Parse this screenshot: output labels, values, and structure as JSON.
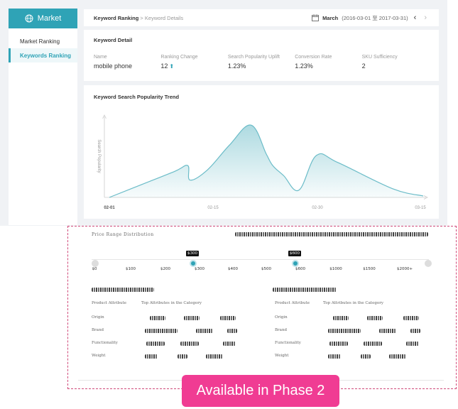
{
  "sidebar": {
    "brand": "Market",
    "items": [
      {
        "label": "Market Ranking",
        "active": false
      },
      {
        "label": "Keywords Ranking",
        "active": true
      }
    ]
  },
  "header": {
    "breadcrumb_main": "Keyword Ranking",
    "breadcrumb_sep": " > ",
    "breadcrumb_sub": "Keyword Details",
    "date_month": "March",
    "date_range": "(2016-03-01 至 2017-03-31)"
  },
  "detail": {
    "title": "Keyword Detail",
    "metrics": [
      {
        "label": "Name",
        "value": "mobile phone"
      },
      {
        "label": "Ranking Change",
        "value": "12"
      },
      {
        "label": "Search Popularity Uplift",
        "value": "1.23%"
      },
      {
        "label": "Conversion Rate",
        "value": "1.23%"
      },
      {
        "label": "SKU Sufficiency",
        "value": "2"
      }
    ]
  },
  "chart_data": {
    "type": "area",
    "title": "Keyword Search Popularity Trend",
    "ylabel": "Search Popularity",
    "xlabel": "",
    "x_ticks": [
      "02-01",
      "02-15",
      "02-30",
      "03-15"
    ],
    "x": [
      0,
      0.15,
      0.3,
      0.36,
      0.37,
      0.45,
      0.55,
      0.65,
      0.72,
      0.75,
      0.8,
      0.87,
      0.95,
      1.05,
      1.3,
      1.44
    ],
    "values": [
      0,
      18,
      36,
      44,
      24,
      38,
      72,
      100,
      60,
      44,
      30,
      10,
      58,
      48,
      12,
      2
    ],
    "ylim": [
      0,
      110
    ],
    "color": "#6bbcc8"
  },
  "phase2": {
    "price_title": "Price Range Distribution",
    "price_low_tag": "$300",
    "price_high_tag": "$600",
    "price_ticks": [
      "$0",
      "$100",
      "$200",
      "$300",
      "$400",
      "$500",
      "$600",
      "$1000",
      "$1500",
      "$2000+"
    ],
    "left_attr_head": "Product Attribute",
    "left_top_head": "Top Attributes in the Category",
    "right_attr_head": "Product Attribute",
    "right_top_head": "Top Attributes in the Category",
    "rows": [
      "Origin",
      "Brand",
      "Functionality",
      "Weight"
    ],
    "badge": "Available in Phase 2"
  },
  "colors": {
    "accent": "#2fa3b6",
    "badge": "#f03c93",
    "dashed_border": "#d04a7a"
  }
}
